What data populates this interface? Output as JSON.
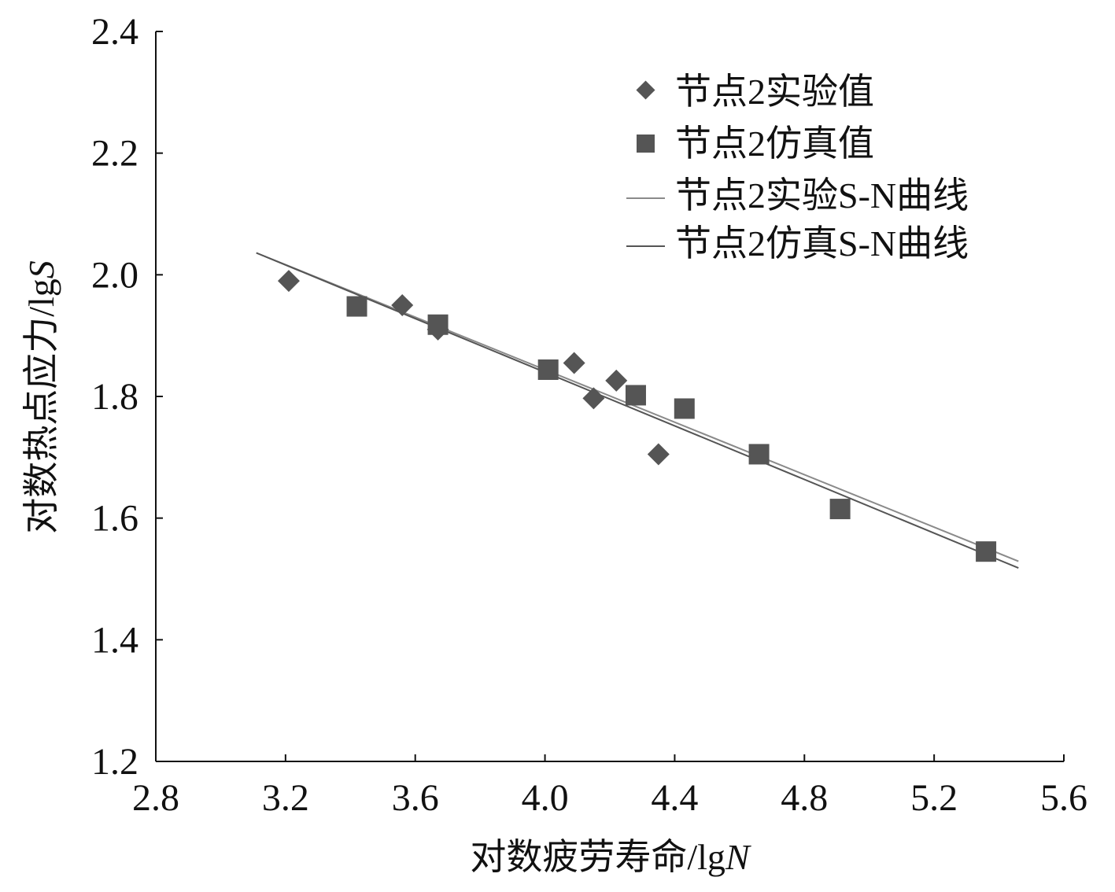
{
  "chart_data": {
    "type": "scatter",
    "xlabel": "对数疲劳寿命/lg",
    "xlabel_var": "N",
    "ylabel": "对数热点应力/lg",
    "ylabel_var": "S",
    "xlim": [
      2.8,
      5.6
    ],
    "ylim": [
      1.2,
      2.4
    ],
    "x_ticks": [
      "2.8",
      "3.2",
      "3.6",
      "4.0",
      "4.4",
      "4.8",
      "5.2",
      "5.6"
    ],
    "y_ticks": [
      "1.2",
      "1.4",
      "1.6",
      "1.8",
      "2.0",
      "2.2",
      "2.4"
    ],
    "grid": false,
    "legend_position": "top-right",
    "series": [
      {
        "name": "节点2实验值",
        "kind": "points",
        "marker": "diamond",
        "color": "#555555",
        "points": [
          [
            3.21,
            1.99
          ],
          [
            3.56,
            1.95
          ],
          [
            3.67,
            1.91
          ],
          [
            4.09,
            1.855
          ],
          [
            4.15,
            1.797
          ],
          [
            4.22,
            1.826
          ],
          [
            4.35,
            1.705
          ]
        ]
      },
      {
        "name": "节点2仿真值",
        "kind": "points",
        "marker": "square",
        "color": "#555555",
        "points": [
          [
            3.42,
            1.948
          ],
          [
            3.67,
            1.918
          ],
          [
            4.01,
            1.844
          ],
          [
            4.28,
            1.802
          ],
          [
            4.43,
            1.78
          ],
          [
            4.66,
            1.705
          ],
          [
            4.91,
            1.615
          ],
          [
            5.36,
            1.545
          ]
        ]
      },
      {
        "name": "节点2实验S-N曲线",
        "kind": "line",
        "color": "#8a8a8a",
        "points": [
          [
            3.11,
            2.036
          ],
          [
            5.46,
            1.529
          ]
        ]
      },
      {
        "name": "节点2仿真S-N曲线",
        "kind": "line",
        "color": "#555555",
        "points": [
          [
            3.11,
            2.036
          ],
          [
            5.46,
            1.518
          ]
        ]
      }
    ]
  }
}
